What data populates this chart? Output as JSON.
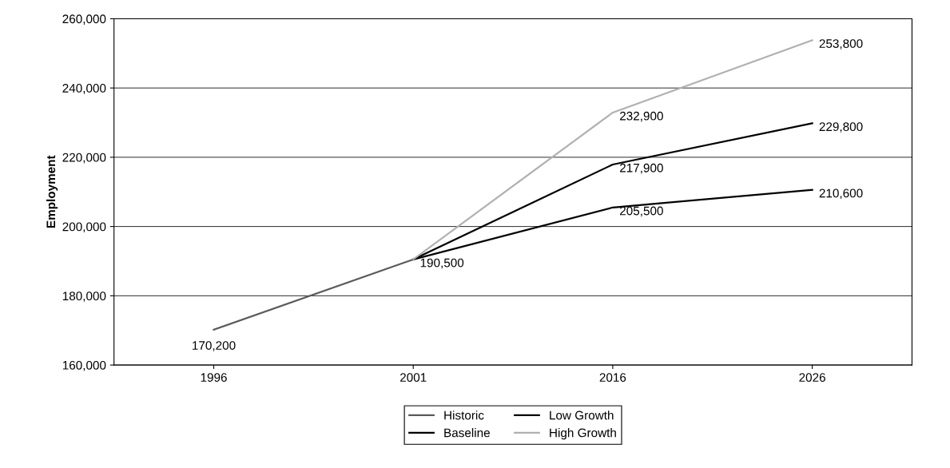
{
  "chart_data": {
    "type": "line",
    "ylabel": "Employment",
    "categories": [
      "1996",
      "2001",
      "2016",
      "2026"
    ],
    "series": [
      {
        "name": "Historic",
        "color": "#5a5a5a",
        "values": [
          170200,
          190500,
          null,
          null
        ],
        "value_labels": [
          "170,200",
          "190,500",
          null,
          null
        ]
      },
      {
        "name": "Baseline",
        "color": "#000000",
        "values": [
          null,
          190500,
          217900,
          229800
        ],
        "value_labels": [
          null,
          null,
          "217,900",
          "229,800"
        ]
      },
      {
        "name": "Low Growth",
        "color": "#000000",
        "values": [
          null,
          190500,
          205500,
          210600
        ],
        "value_labels": [
          null,
          null,
          "205,500",
          "210,600"
        ]
      },
      {
        "name": "High Growth",
        "color": "#b0b0b0",
        "values": [
          null,
          190500,
          232900,
          253800
        ],
        "value_labels": [
          null,
          null,
          "232,900",
          "253,800"
        ]
      }
    ],
    "ylim": [
      160000,
      260000
    ],
    "yticks": [
      {
        "value": 160000,
        "label": "160,000"
      },
      {
        "value": 180000,
        "label": "180,000"
      },
      {
        "value": 200000,
        "label": "200,000"
      },
      {
        "value": 220000,
        "label": "220,000"
      },
      {
        "value": 240000,
        "label": "240,000"
      },
      {
        "value": 260000,
        "label": "260,000"
      }
    ],
    "grid": "y",
    "legend": "bottom",
    "marker": "none",
    "line_style": "solid"
  }
}
